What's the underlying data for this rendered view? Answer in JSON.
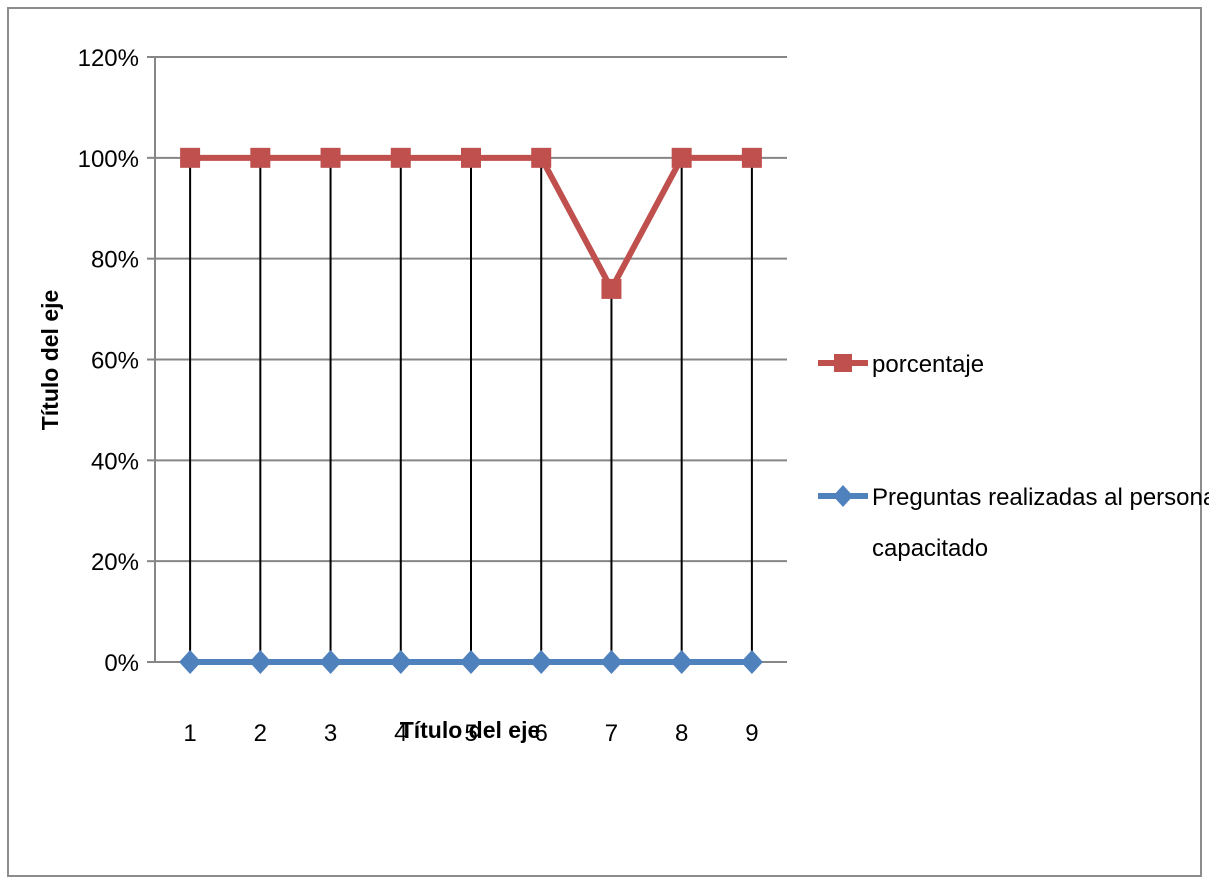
{
  "chart_data": {
    "type": "line",
    "title": "",
    "xlabel": "Título del eje",
    "ylabel": "Título del eje",
    "categories": [
      "1",
      "2",
      "3",
      "4",
      "5",
      "6",
      "7",
      "8",
      "9"
    ],
    "ylim": [
      0,
      1.2
    ],
    "y_ticks": [
      "0%",
      "20%",
      "40%",
      "60%",
      "80%",
      "100%",
      "120%"
    ],
    "grid": true,
    "drop_lines": true,
    "legend_position": "right",
    "series": [
      {
        "name": "porcentaje",
        "values": [
          1.0,
          1.0,
          1.0,
          1.0,
          1.0,
          1.0,
          0.74,
          1.0,
          1.0
        ],
        "color": "#c0504d",
        "marker": "square"
      },
      {
        "name": "Preguntas realizadas al personal capacitado",
        "name_lines": [
          "Preguntas realizadas al personal",
          "capacitado"
        ],
        "values": [
          0,
          0,
          0,
          0,
          0,
          0,
          0,
          0,
          0
        ],
        "color": "#4f81bd",
        "marker": "diamond"
      }
    ]
  }
}
